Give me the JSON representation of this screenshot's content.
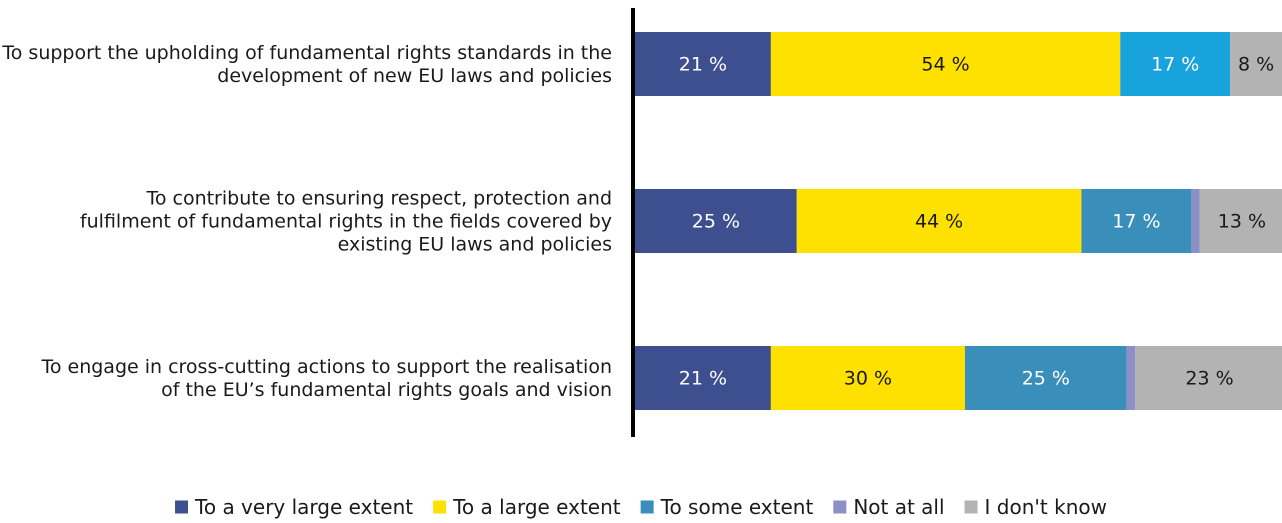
{
  "chart_data": {
    "type": "bar",
    "orientation": "horizontal",
    "stacked": true,
    "value_suffix": " %",
    "categories": [
      [
        "To support the upholding of fundamental rights standards in the",
        "development of new EU laws and policies"
      ],
      [
        "To contribute to ensuring respect, protection and",
        "fulfilment of fundamental rights in the fields covered by",
        "existing EU laws and policies"
      ],
      [
        "To engage in cross-cutting actions to support the realisation",
        "of the EU’s fundamental rights goals and vision"
      ]
    ],
    "series": [
      {
        "name": "To a very large extent",
        "color": "#3d4f8f",
        "label_color": "#ffffff",
        "values": [
          21,
          25,
          21
        ]
      },
      {
        "name": "To a large extent",
        "color": "#ffe100",
        "label_color": "#1a1a1a",
        "values": [
          54,
          44,
          30
        ]
      },
      {
        "name": "To some extent",
        "color_per_bar": [
          "#19a3dc",
          "#3a8fba",
          "#3a8fba"
        ],
        "label_color": "#ffffff",
        "values": [
          17,
          17,
          25
        ]
      },
      {
        "name": "Not at all",
        "color": "#8f8fc8",
        "label_color": "#ffffff",
        "values": [
          0,
          1.3,
          1.3
        ]
      },
      {
        "name": "I don't know",
        "color": "#b3b3b3",
        "label_color": "#1a1a1a",
        "values": [
          8,
          13,
          23
        ]
      }
    ],
    "data_labels": [
      [
        "21 %",
        "54 %",
        "17 %",
        "",
        "8 %"
      ],
      [
        "25 %",
        "44 %",
        "17 %",
        "",
        "13 %"
      ],
      [
        "21 %",
        "30 %",
        "25 %",
        "",
        "23 %"
      ]
    ],
    "xlim": [
      0,
      100
    ],
    "grid": false,
    "legend_position": "bottom",
    "legend_swatch_color": [
      "#3d4f8f",
      "#ffe100",
      "#3a8fba",
      "#8f8fc8",
      "#b3b3b3"
    ],
    "axis_line_color": "#000000",
    "text_color": "#1a1a1a"
  }
}
